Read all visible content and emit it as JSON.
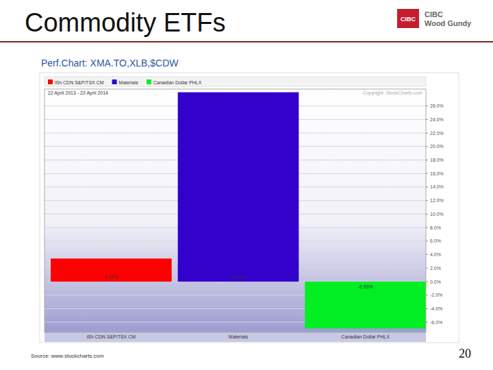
{
  "slide": {
    "title": "Commodity ETFs",
    "logo_mark": "CIBC",
    "logo_text": [
      "CIBC",
      "Wood Gundy"
    ],
    "source": "Source: www.stockcharts.com",
    "page": "20"
  },
  "chart_data": {
    "type": "bar",
    "title": "Perf.Chart: XMA.TO,XLB,$CDW",
    "subtitle": "22 April 2013 - 22 April 2014",
    "annotation": "Copyright: StockCharts.com",
    "categories": [
      "iSh CDN S&P/TSX CM",
      "Materials",
      "Canadian Dollar PHLX"
    ],
    "values": [
      3.42,
      28.03,
      -6.93
    ],
    "value_labels": [
      "3.42%",
      "28.03%",
      "-6.93%"
    ],
    "colors": [
      "#ff0000",
      "#3300cc",
      "#00ee22"
    ],
    "ylim": [
      -7.5,
      28.5
    ],
    "yticks": [
      {
        "value": -6,
        "label": "-6.0%"
      },
      {
        "value": -4,
        "label": "-4.0%"
      },
      {
        "value": -2,
        "label": "-2.0%"
      },
      {
        "value": 0,
        "label": "0.0%"
      },
      {
        "value": 2,
        "label": "2.0%"
      },
      {
        "value": 4,
        "label": "4.0%"
      },
      {
        "value": 6,
        "label": "6.0%"
      },
      {
        "value": 8,
        "label": "8.0%"
      },
      {
        "value": 10,
        "label": "10.0%"
      },
      {
        "value": 12,
        "label": "12.0%"
      },
      {
        "value": 14,
        "label": "14.0%"
      },
      {
        "value": 16,
        "label": "16.0%"
      },
      {
        "value": 18,
        "label": "18.0%"
      },
      {
        "value": 20,
        "label": "20.0%"
      },
      {
        "value": 22,
        "label": "22.0%"
      },
      {
        "value": 24,
        "label": "24.0%"
      },
      {
        "value": 26,
        "label": "26.0%"
      }
    ],
    "grid": true,
    "legend": "top-left",
    "data_labels": true
  }
}
